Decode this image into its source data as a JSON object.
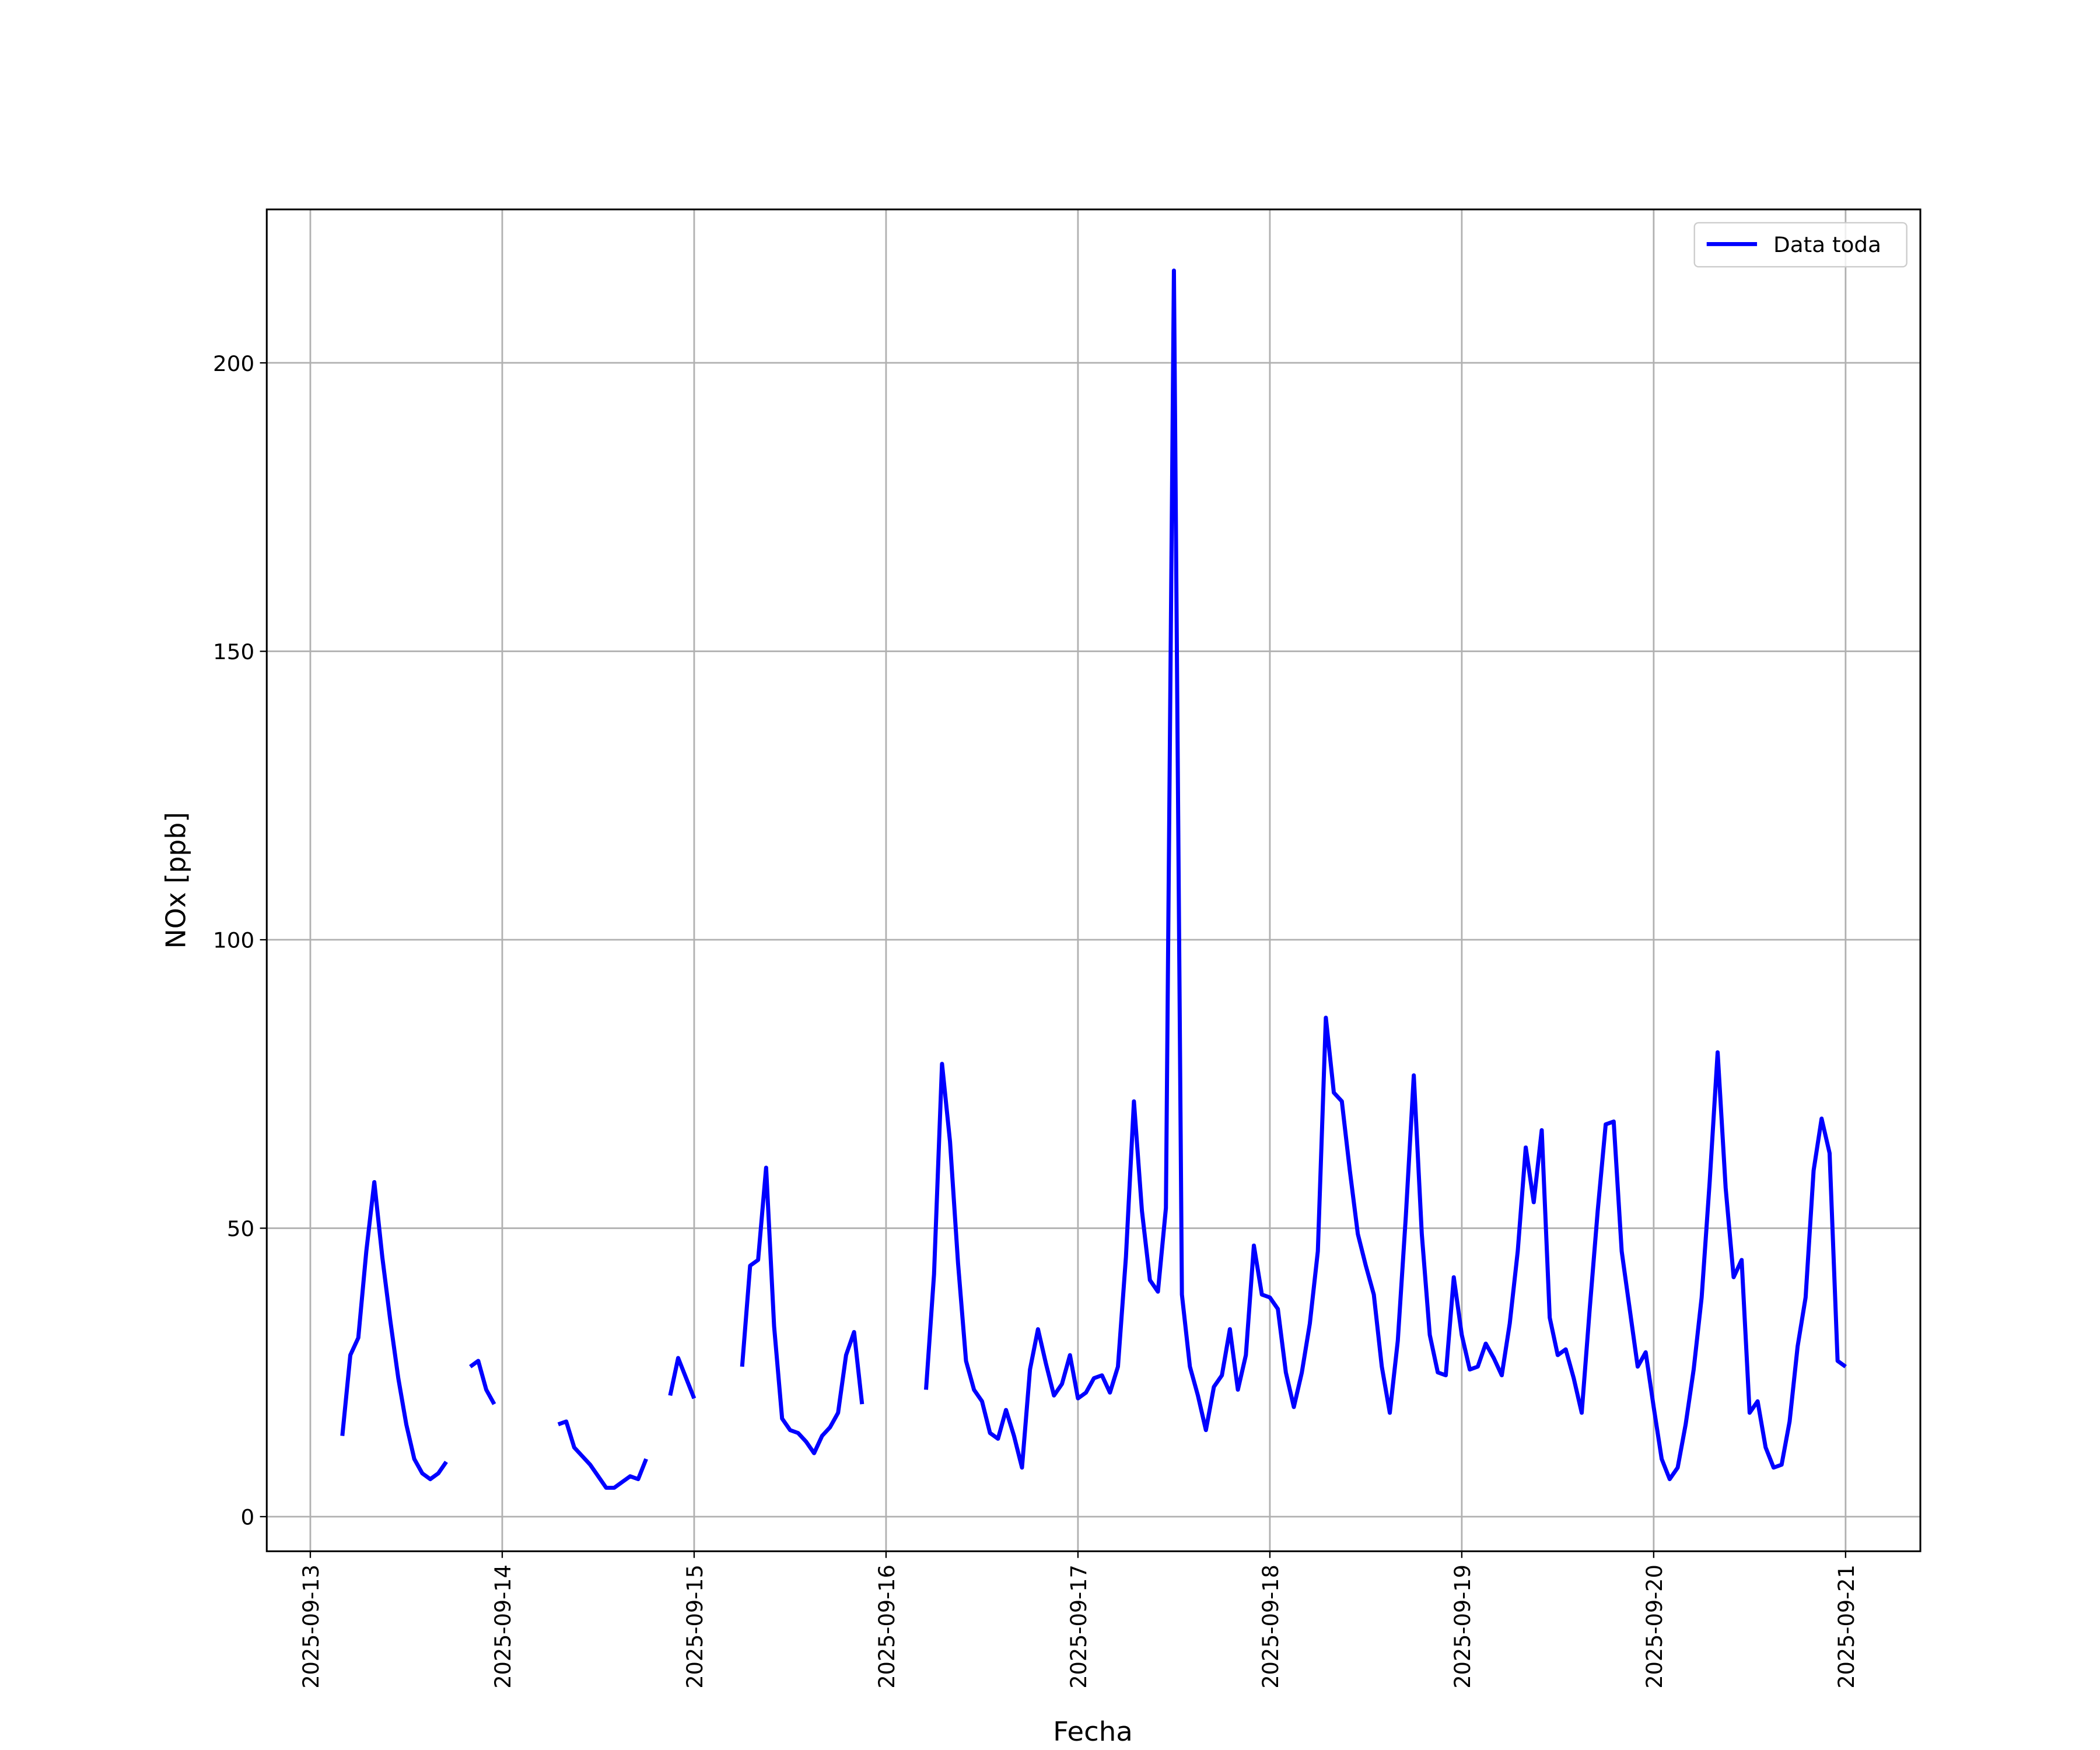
{
  "chart_data": {
    "type": "line",
    "xlabel": "Fecha",
    "ylabel": "NOx [ppb]",
    "legend": "upper right",
    "grid": true,
    "xlim": [
      "2025-09-12 18:33",
      "2025-09-21 09:21"
    ],
    "xticks": [
      "2025-09-13",
      "2025-09-14",
      "2025-09-15",
      "2025-09-16",
      "2025-09-17",
      "2025-09-18",
      "2025-09-19",
      "2025-09-20",
      "2025-09-21"
    ],
    "ylim": [
      -6,
      226.6
    ],
    "yticks": [
      0,
      50,
      100,
      150,
      200
    ],
    "x": [
      "2025-09-13 04:00",
      "2025-09-13 05:00",
      "2025-09-13 06:00",
      "2025-09-13 07:00",
      "2025-09-13 08:00",
      "2025-09-13 09:00",
      "2025-09-13 10:00",
      "2025-09-13 11:00",
      "2025-09-13 12:00",
      "2025-09-13 13:00",
      "2025-09-13 14:00",
      "2025-09-13 15:00",
      "2025-09-13 16:00",
      "2025-09-13 17:00",
      "2025-09-13 18:00",
      "2025-09-13 20:00",
      "2025-09-13 21:00",
      "2025-09-13 22:00",
      "2025-09-13 23:00",
      "2025-09-14 00:00",
      "2025-09-14 07:00",
      "2025-09-14 08:00",
      "2025-09-14 09:00",
      "2025-09-14 10:00",
      "2025-09-14 11:00",
      "2025-09-14 12:00",
      "2025-09-14 13:00",
      "2025-09-14 14:00",
      "2025-09-14 15:00",
      "2025-09-14 16:00",
      "2025-09-14 17:00",
      "2025-09-14 18:00",
      "2025-09-14 19:00",
      "2025-09-14 21:00",
      "2025-09-14 22:00",
      "2025-09-14 23:00",
      "2025-09-15 00:00",
      "2025-09-15 01:00",
      "2025-09-15 06:00",
      "2025-09-15 07:00",
      "2025-09-15 08:00",
      "2025-09-15 09:00",
      "2025-09-15 10:00",
      "2025-09-15 11:00",
      "2025-09-15 12:00",
      "2025-09-15 13:00",
      "2025-09-15 14:00",
      "2025-09-15 15:00",
      "2025-09-15 16:00",
      "2025-09-15 17:00",
      "2025-09-15 18:00",
      "2025-09-15 19:00",
      "2025-09-15 20:00",
      "2025-09-15 21:00",
      "2025-09-15 22:00",
      "2025-09-16 05:00",
      "2025-09-16 06:00",
      "2025-09-16 07:00",
      "2025-09-16 08:00",
      "2025-09-16 09:00",
      "2025-09-16 10:00",
      "2025-09-16 11:00",
      "2025-09-16 12:00",
      "2025-09-16 13:00",
      "2025-09-16 14:00",
      "2025-09-16 15:00",
      "2025-09-16 16:00",
      "2025-09-16 17:00",
      "2025-09-16 18:00",
      "2025-09-16 19:00",
      "2025-09-16 20:00",
      "2025-09-16 21:00",
      "2025-09-16 22:00",
      "2025-09-16 23:00",
      "2025-09-17 00:00",
      "2025-09-17 01:00",
      "2025-09-17 02:00",
      "2025-09-17 03:00",
      "2025-09-17 04:00",
      "2025-09-17 05:00",
      "2025-09-17 06:00",
      "2025-09-17 07:00",
      "2025-09-17 08:00",
      "2025-09-17 09:00",
      "2025-09-17 10:00",
      "2025-09-17 11:00",
      "2025-09-17 12:00",
      "2025-09-17 13:00",
      "2025-09-17 14:00",
      "2025-09-17 15:00",
      "2025-09-17 16:00",
      "2025-09-17 17:00",
      "2025-09-17 18:00",
      "2025-09-17 19:00",
      "2025-09-17 20:00",
      "2025-09-17 21:00",
      "2025-09-17 22:00",
      "2025-09-17 23:00",
      "2025-09-18 00:00",
      "2025-09-18 01:00",
      "2025-09-18 02:00",
      "2025-09-18 03:00",
      "2025-09-18 04:00",
      "2025-09-18 05:00",
      "2025-09-18 06:00",
      "2025-09-18 07:00",
      "2025-09-18 08:00",
      "2025-09-18 09:00",
      "2025-09-18 10:00",
      "2025-09-18 11:00",
      "2025-09-18 12:00",
      "2025-09-18 13:00",
      "2025-09-18 14:00",
      "2025-09-18 15:00",
      "2025-09-18 16:00",
      "2025-09-18 17:00",
      "2025-09-18 18:00",
      "2025-09-18 19:00",
      "2025-09-18 20:00",
      "2025-09-18 21:00",
      "2025-09-18 22:00",
      "2025-09-18 23:00",
      "2025-09-19 00:00",
      "2025-09-19 01:00",
      "2025-09-19 02:00",
      "2025-09-19 03:00",
      "2025-09-19 04:00",
      "2025-09-19 05:00",
      "2025-09-19 06:00",
      "2025-09-19 07:00",
      "2025-09-19 08:00",
      "2025-09-19 09:00",
      "2025-09-19 10:00",
      "2025-09-19 11:00",
      "2025-09-19 12:00",
      "2025-09-19 13:00",
      "2025-09-19 14:00",
      "2025-09-19 15:00",
      "2025-09-19 16:00",
      "2025-09-19 17:00",
      "2025-09-19 18:00",
      "2025-09-19 19:00",
      "2025-09-19 20:00",
      "2025-09-19 21:00",
      "2025-09-19 22:00",
      "2025-09-19 23:00",
      "2025-09-20 00:00",
      "2025-09-20 01:00",
      "2025-09-20 02:00",
      "2025-09-20 03:00",
      "2025-09-20 04:00",
      "2025-09-20 05:00",
      "2025-09-20 06:00",
      "2025-09-20 07:00",
      "2025-09-20 08:00",
      "2025-09-20 09:00",
      "2025-09-20 10:00",
      "2025-09-20 11:00",
      "2025-09-20 12:00",
      "2025-09-20 13:00",
      "2025-09-20 14:00",
      "2025-09-20 15:00",
      "2025-09-20 16:00",
      "2025-09-20 17:00",
      "2025-09-20 18:00",
      "2025-09-20 19:00",
      "2025-09-20 20:00",
      "2025-09-20 21:00",
      "2025-09-20 22:00",
      "2025-09-20 23:00",
      "2025-09-21 00:00"
    ],
    "series": [
      {
        "name": "Data toda",
        "color": "#0000ff",
        "values": [
          14,
          28,
          31,
          46,
          58,
          45,
          34,
          24,
          16,
          10,
          7.5,
          6.5,
          7.5,
          9.5,
          null,
          26,
          27,
          22,
          19.5,
          null,
          16,
          16.5,
          12,
          10.5,
          9,
          7,
          5,
          5,
          6,
          7,
          6.5,
          10,
          null,
          21,
          27.5,
          24,
          20.5,
          null,
          26,
          43.5,
          44.5,
          60.5,
          33,
          17,
          15,
          14.5,
          13,
          11,
          14,
          15.5,
          18,
          28,
          32,
          19.5,
          null,
          22,
          42,
          78.5,
          65,
          44,
          27,
          22,
          20,
          14.5,
          13.5,
          18.5,
          14,
          8.5,
          25.5,
          32.5,
          26.5,
          21,
          23,
          28,
          20.5,
          21.5,
          24,
          24.5,
          21.5,
          26,
          45,
          72,
          53,
          41,
          39,
          53.5,
          216,
          38.5,
          26,
          21,
          15,
          22.5,
          24.5,
          32.5,
          22,
          28,
          47,
          38.5,
          38,
          36,
          25,
          19,
          25,
          33.5,
          46,
          86.5,
          73.5,
          72,
          60,
          49,
          43.5,
          38.5,
          26,
          18,
          30.5,
          52,
          76.5,
          49,
          31.5,
          25,
          24.5,
          41.5,
          31.5,
          25.5,
          26,
          30,
          27.5,
          24.5,
          33.5,
          46,
          64,
          54.5,
          67,
          34.5,
          28,
          29,
          24,
          18,
          36,
          53,
          68,
          68.5,
          46,
          36,
          26,
          28.5,
          19,
          10,
          6.5,
          8.5,
          16,
          25.5,
          38,
          58,
          80.5,
          57,
          41.5,
          44.5,
          18,
          20,
          12,
          8.5,
          9,
          16.5,
          29.5,
          38,
          60,
          69,
          63,
          27,
          26
        ]
      }
    ]
  }
}
